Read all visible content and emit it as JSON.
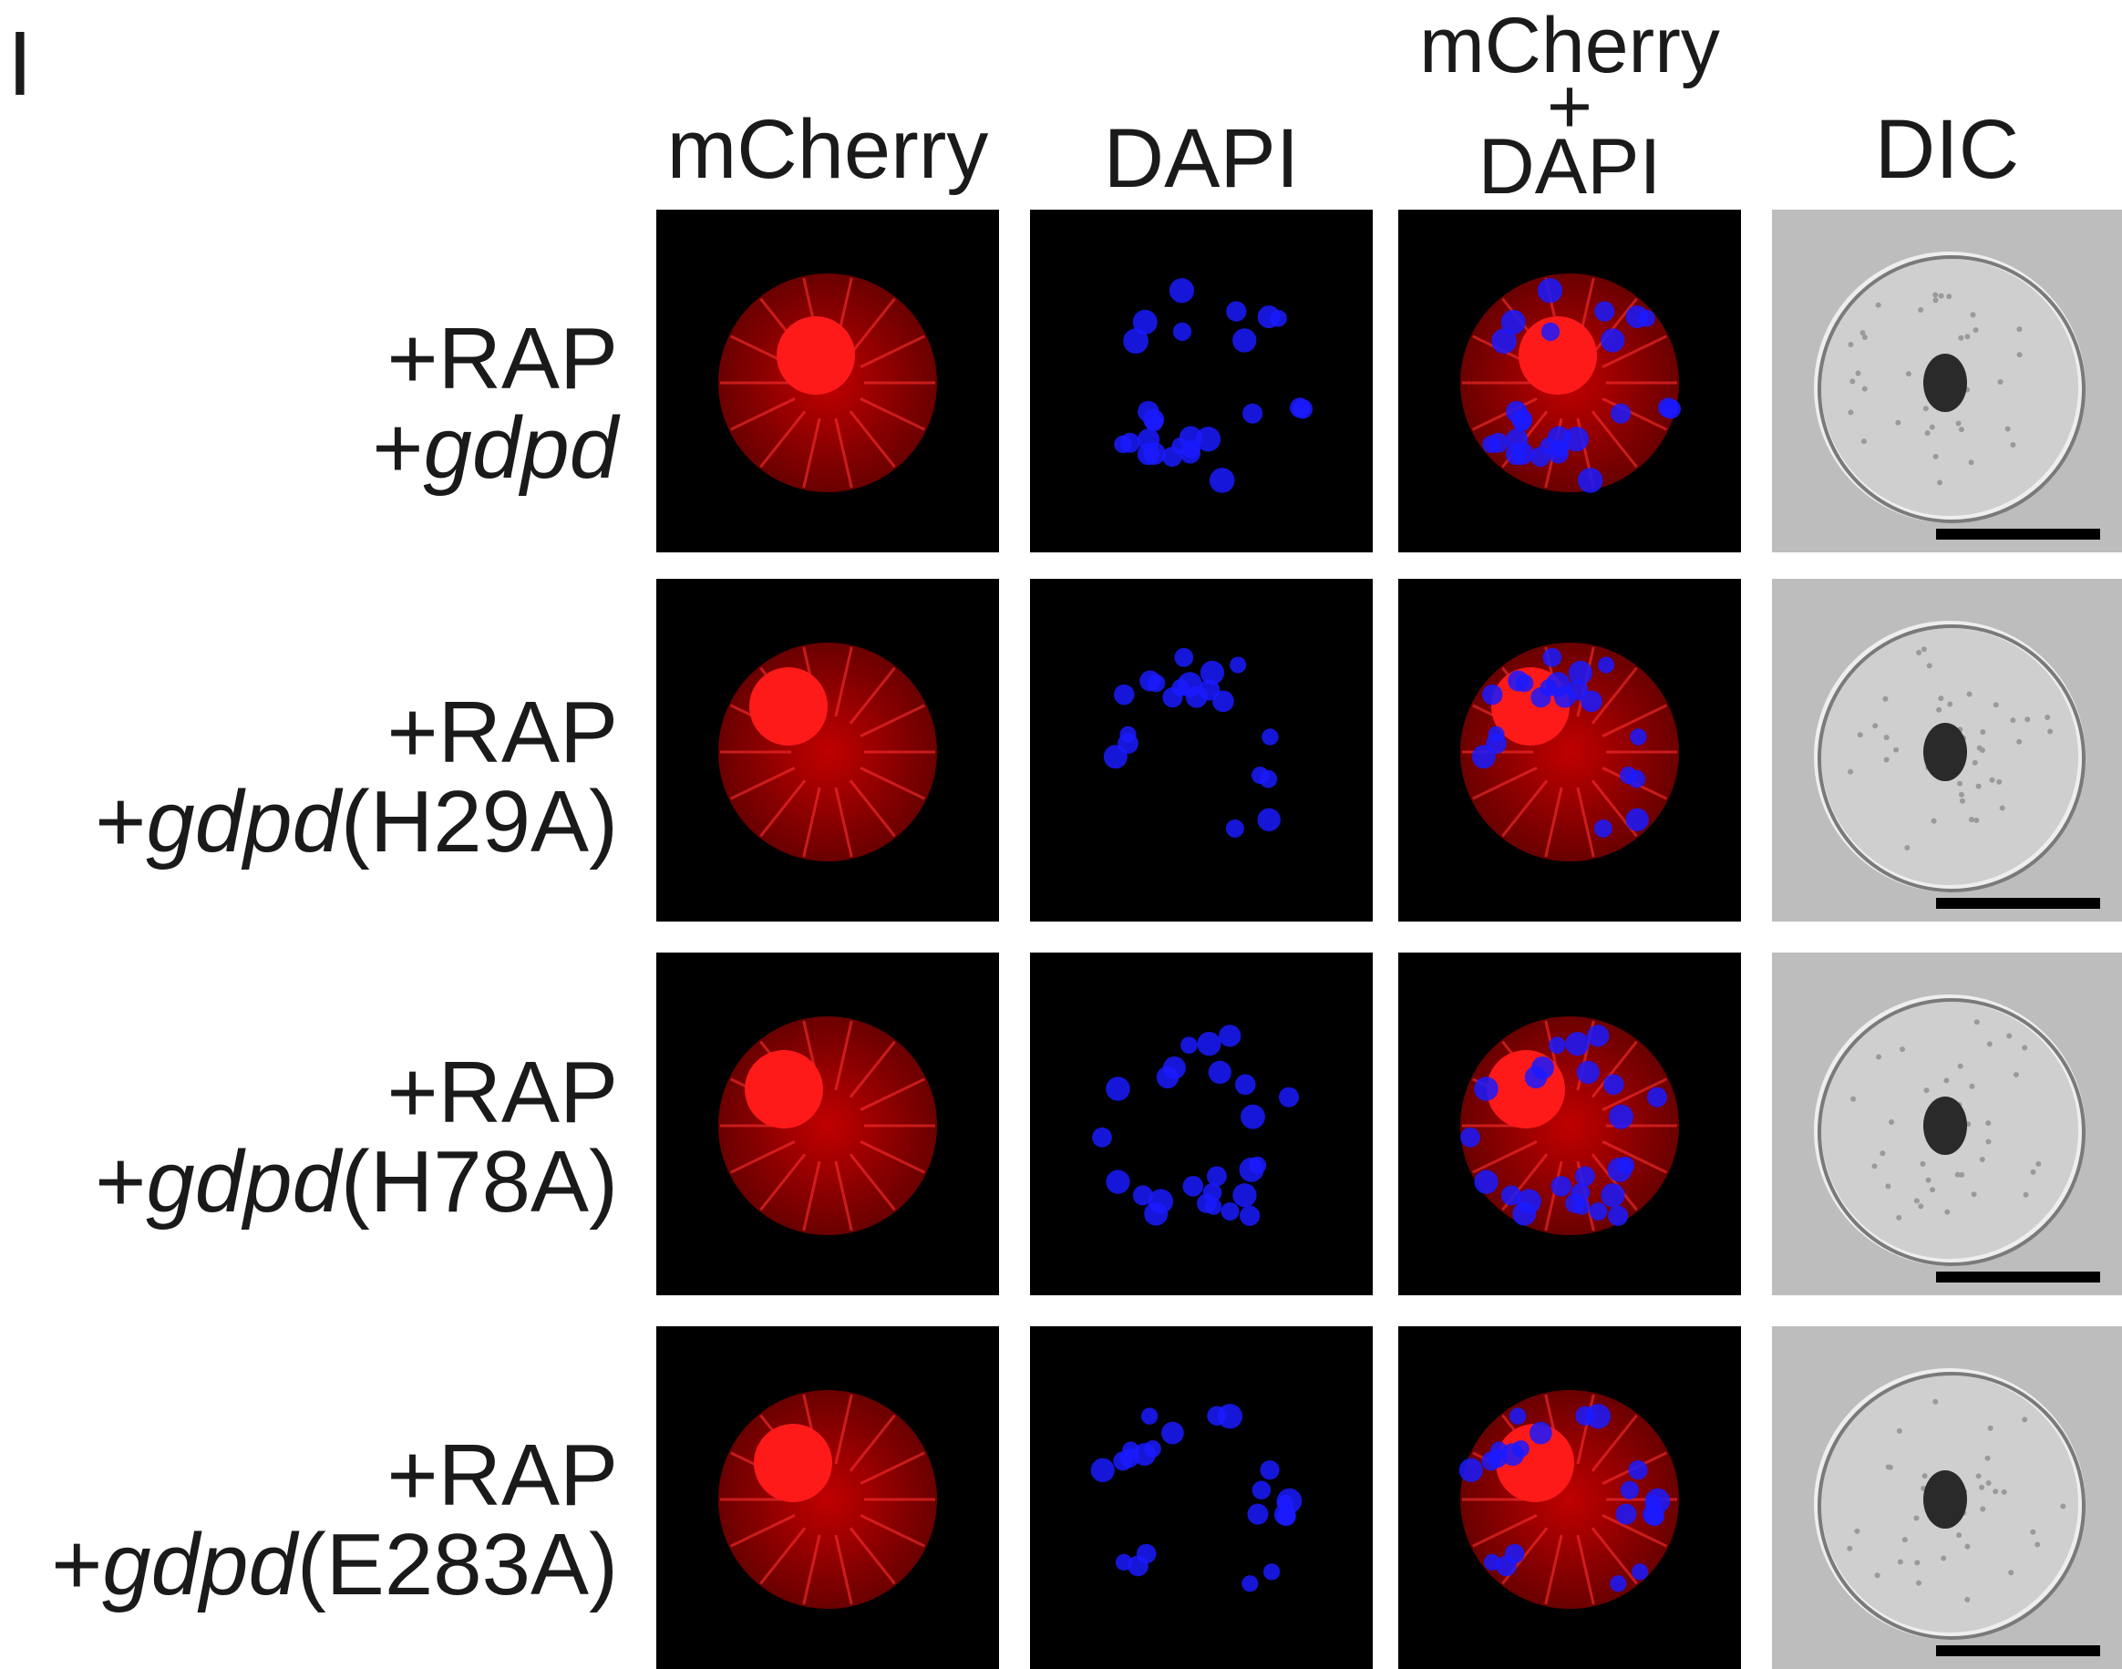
{
  "panel_letter": "I",
  "columns": {
    "mcherry": "mCherry",
    "dapi": "DAPI",
    "merge": {
      "line1": "mCherry",
      "line2": "+",
      "line3": "DAPI"
    },
    "dic": "DIC"
  },
  "rows": [
    {
      "line1": "+RAP",
      "prefix": "+",
      "gene": "gdpd",
      "mutation": ""
    },
    {
      "line1": "+RAP",
      "prefix": "+",
      "gene": "gdpd",
      "mutation": "(H29A)"
    },
    {
      "line1": "+RAP",
      "prefix": "+",
      "gene": "gdpd",
      "mutation": "(H78A)"
    },
    {
      "line1": "+RAP",
      "prefix": "+",
      "gene": "gdpd",
      "mutation": "(E283A)"
    }
  ],
  "colors": {
    "mcherry": "#ff1a1a",
    "dapi": "#1a1aff",
    "dic_background": "#bdbdbd",
    "background": "#000000"
  }
}
